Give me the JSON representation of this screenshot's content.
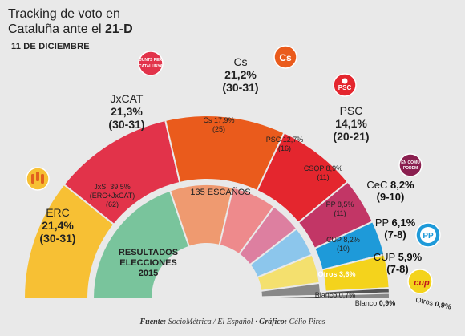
{
  "header": {
    "title_line1": "Tracking de voto en",
    "title_line2": "Cataluña ante el ",
    "title_bold": "21-D",
    "date": "11 DE DICIEMBRE"
  },
  "footer": {
    "source_label": "Fuente:",
    "source_text": " SocioMétrica / El Español · ",
    "graphic_label": "Gráfico:",
    "graphic_text": " Célio Pires"
  },
  "chart_data": [
    {
      "type": "pie",
      "chart": "semicircle",
      "series": "Tracking 11 de diciembre",
      "slices": [
        {
          "party": "ERC",
          "pct": "21,4%",
          "value": 21.4,
          "seats": "(30-31)",
          "color": "#f7c034",
          "logo": "erc-logo"
        },
        {
          "party": "JxCAT",
          "pct": "21,3%",
          "value": 21.3,
          "seats": "(30-31)",
          "color": "#e2334a",
          "logo": "juntspercatalunya-logo",
          "logo_text": "JUNTS PER CATALUNYA"
        },
        {
          "party": "Cs",
          "pct": "21,2%",
          "value": 21.2,
          "seats": "(30-31)",
          "color": "#ea5b1c",
          "logo": "cs-logo",
          "logo_text": "Cs"
        },
        {
          "party": "PSC",
          "pct": "14,1%",
          "value": 14.1,
          "seats": "(20-21)",
          "color": "#e4262e",
          "logo": "psc-logo",
          "logo_text": "PSC"
        },
        {
          "party": "CeC",
          "pct": "8,2%",
          "value": 8.2,
          "seats": "(9-10)",
          "color": "#c23666",
          "logo": "encomupodem-logo",
          "logo_text": "EN COMÚ PODEM"
        },
        {
          "party": "PP",
          "pct": "6,1%",
          "value": 6.1,
          "seats": "(7-8)",
          "color": "#1e9ad9",
          "logo": "pp-logo",
          "logo_text": "PP"
        },
        {
          "party": "CUP",
          "pct": "5,9%",
          "value": 5.9,
          "seats": "(7-8)",
          "color": "#f4d31c",
          "logo": "cup-logo",
          "logo_text": "cup"
        },
        {
          "party": "Blanco",
          "pct": "0,9%",
          "value": 0.9,
          "seats": "",
          "color": "#555555"
        },
        {
          "party": "Otros",
          "pct": "0,9%",
          "value": 0.9,
          "seats": "",
          "color": "#888888"
        }
      ]
    },
    {
      "type": "pie",
      "chart": "semicircle",
      "series": "Resultados elecciones 2015",
      "center_label": "135 ESCAÑOS",
      "result_title_lines": [
        "RESULTADOS",
        "ELECCIONES",
        "2015"
      ],
      "slices": [
        {
          "party": "JxSí",
          "party_sub": "(ERC+JxCAT)",
          "pct": "39,5%",
          "value": 39.5,
          "seats": "(62)",
          "color": "#79c49c"
        },
        {
          "party": "Cs",
          "pct": "17,9%",
          "value": 17.9,
          "seats": "(25)",
          "color": "#ef9a70"
        },
        {
          "party": "PSC",
          "pct": "12,7%",
          "value": 12.7,
          "seats": "(16)",
          "color": "#ee8a8c"
        },
        {
          "party": "CSQP",
          "pct": "8,9%",
          "value": 8.9,
          "seats": "(11)",
          "color": "#dd7fa0"
        },
        {
          "party": "PP",
          "pct": "8,5%",
          "value": 8.5,
          "seats": "(11)",
          "color": "#8cc6ec"
        },
        {
          "party": "CUP",
          "pct": "8,2%",
          "value": 8.2,
          "seats": "(10)",
          "color": "#f4e06e"
        },
        {
          "party": "Otros",
          "pct": "3,6%",
          "value": 3.6,
          "seats": "",
          "color": "#888888"
        },
        {
          "party": "Blanco",
          "pct": "0,7%",
          "value": 0.7,
          "seats": "",
          "color": "#555555"
        }
      ]
    }
  ]
}
